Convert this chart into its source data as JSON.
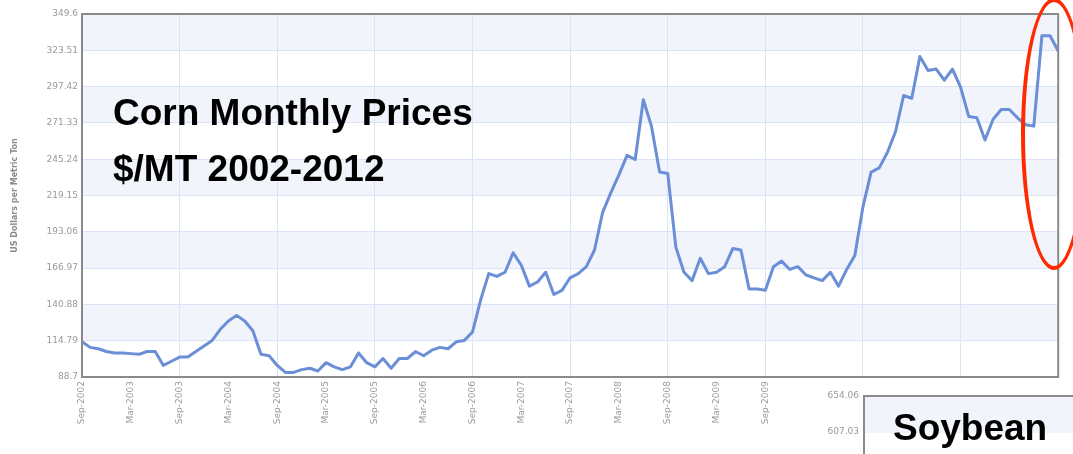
{
  "chart_data": [
    {
      "type": "line",
      "title": "Corn Monthly Prices",
      "subtitle": "$/MT 2002-2012",
      "ylabel": "US Dollars per Metric Ton",
      "grid": true,
      "marker": "none",
      "line_style": "solid",
      "xlim": [
        "2002-09",
        "2012-09"
      ],
      "xticks": [
        {
          "value": "2002-09",
          "label": "Sep-2002"
        },
        {
          "value": "2003-03",
          "label": "Mar-2003"
        },
        {
          "value": "2003-09",
          "label": "Sep-2003"
        },
        {
          "value": "2004-03",
          "label": "Mar-2004"
        },
        {
          "value": "2004-09",
          "label": "Sep-2004"
        },
        {
          "value": "2005-03",
          "label": "Mar-2005"
        },
        {
          "value": "2005-09",
          "label": "Sep-2005"
        },
        {
          "value": "2006-03",
          "label": "Mar-2006"
        },
        {
          "value": "2006-09",
          "label": "Sep-2006"
        },
        {
          "value": "2007-03",
          "label": "Mar-2007"
        },
        {
          "value": "2007-09",
          "label": "Sep-2007"
        },
        {
          "value": "2008-03",
          "label": "Mar-2008"
        },
        {
          "value": "2008-09",
          "label": "Sep-2008"
        },
        {
          "value": "2009-03",
          "label": "Mar-2009"
        },
        {
          "value": "2009-09",
          "label": "Sep-2009"
        },
        {
          "value": "2010-09",
          "label": null
        },
        {
          "value": "2011-09",
          "label": null
        },
        {
          "value": "2012-09",
          "label": null
        }
      ],
      "ylim": [
        88.7,
        349.6
      ],
      "yticks": [
        88.7,
        114.79,
        140.88,
        166.97,
        193.06,
        219.15,
        245.24,
        271.33,
        297.42,
        323.51,
        349.6
      ],
      "x": [
        "2002-09",
        "2002-10",
        "2002-11",
        "2002-12",
        "2003-01",
        "2003-02",
        "2003-03",
        "2003-04",
        "2003-05",
        "2003-06",
        "2003-07",
        "2003-08",
        "2003-09",
        "2003-10",
        "2003-11",
        "2003-12",
        "2004-01",
        "2004-02",
        "2004-03",
        "2004-04",
        "2004-05",
        "2004-06",
        "2004-07",
        "2004-08",
        "2004-09",
        "2004-10",
        "2004-11",
        "2004-12",
        "2005-01",
        "2005-02",
        "2005-03",
        "2005-04",
        "2005-05",
        "2005-06",
        "2005-07",
        "2005-08",
        "2005-09",
        "2005-10",
        "2005-11",
        "2005-12",
        "2006-01",
        "2006-02",
        "2006-03",
        "2006-04",
        "2006-05",
        "2006-06",
        "2006-07",
        "2006-08",
        "2006-09",
        "2006-10",
        "2006-11",
        "2006-12",
        "2007-01",
        "2007-02",
        "2007-03",
        "2007-04",
        "2007-05",
        "2007-06",
        "2007-07",
        "2007-08",
        "2007-09",
        "2007-10",
        "2007-11",
        "2007-12",
        "2008-01",
        "2008-02",
        "2008-03",
        "2008-04",
        "2008-05",
        "2008-06",
        "2008-07",
        "2008-08",
        "2008-09",
        "2008-10",
        "2008-11",
        "2008-12",
        "2009-01",
        "2009-02",
        "2009-03",
        "2009-04",
        "2009-05",
        "2009-06",
        "2009-07",
        "2009-08",
        "2009-09",
        "2009-10",
        "2009-11",
        "2009-12",
        "2010-01",
        "2010-02",
        "2010-03",
        "2010-04",
        "2010-05",
        "2010-06",
        "2010-07",
        "2010-08",
        "2010-09",
        "2010-10",
        "2010-11",
        "2010-12",
        "2011-01",
        "2011-02",
        "2011-03",
        "2011-04",
        "2011-05",
        "2011-06",
        "2011-07",
        "2011-08",
        "2011-09",
        "2011-10",
        "2011-11",
        "2011-12",
        "2012-01",
        "2012-02",
        "2012-03",
        "2012-04",
        "2012-05",
        "2012-06",
        "2012-07",
        "2012-08",
        "2012-09"
      ],
      "series": [
        {
          "color": "#6a8fd6",
          "values": [
            114,
            110,
            109,
            107,
            106,
            106,
            105.5,
            105,
            107,
            107,
            97,
            100,
            103,
            103,
            107,
            111,
            115,
            123,
            129,
            133,
            129,
            122,
            105,
            104,
            97,
            92,
            92,
            94,
            95,
            93,
            99,
            96,
            94,
            96,
            106,
            99,
            96,
            102,
            95,
            102,
            102,
            107,
            104,
            108,
            110,
            109,
            114,
            115,
            121,
            144,
            163,
            161,
            164,
            178,
            169,
            154,
            157,
            164,
            148,
            151,
            160,
            163,
            168,
            180,
            207,
            221,
            234,
            248,
            245,
            288,
            269,
            236,
            235,
            182,
            164,
            158,
            174,
            163,
            164,
            168,
            181,
            180,
            152,
            152,
            151,
            168,
            172,
            166,
            168,
            162,
            160,
            158,
            164,
            154,
            166,
            176,
            211,
            236,
            239,
            250,
            265,
            291,
            289,
            319,
            309,
            310,
            302,
            310,
            297,
            276,
            275,
            259,
            274,
            281,
            281,
            275,
            270,
            269,
            334,
            334,
            323
          ]
        }
      ]
    },
    {
      "type": "other",
      "title": "Soybean",
      "annotations": [
        "654.06",
        "607.03"
      ]
    }
  ]
}
